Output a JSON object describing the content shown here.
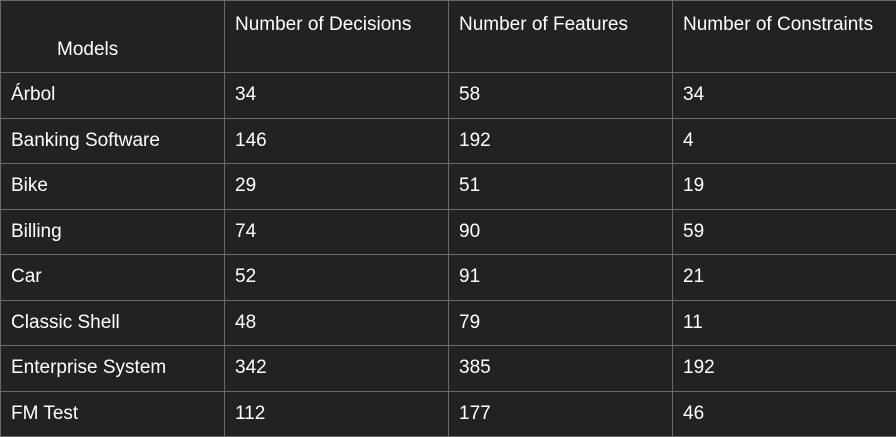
{
  "table": {
    "headers": [
      "Models",
      "Number of Decisions",
      "Number of Features",
      "Number of Constraints"
    ],
    "rows": [
      [
        "Árbol",
        "34",
        "58",
        "34"
      ],
      [
        "Banking Software",
        "146",
        "192",
        "4"
      ],
      [
        "Bike",
        "29",
        "51",
        "19"
      ],
      [
        "Billing",
        "74",
        "90",
        "59"
      ],
      [
        "Car",
        "52",
        "91",
        "21"
      ],
      [
        "Classic Shell",
        "48",
        "79",
        "11"
      ],
      [
        "Enterprise System",
        "342",
        "385",
        "192"
      ],
      [
        "FM Test",
        "112",
        "177",
        "46"
      ]
    ]
  }
}
